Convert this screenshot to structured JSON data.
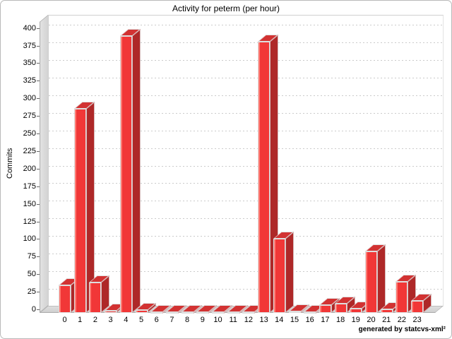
{
  "title": "Activity for peterm (per hour)",
  "footer": {
    "credit": "generated by statcvs-xml²"
  },
  "chart_data": {
    "type": "bar",
    "style": "3d",
    "title": "Activity for peterm (per hour)",
    "xlabel": "",
    "ylabel": "Commits",
    "categories": [
      "0",
      "1",
      "2",
      "3",
      "4",
      "5",
      "6",
      "7",
      "8",
      "9",
      "10",
      "11",
      "12",
      "13",
      "14",
      "15",
      "16",
      "17",
      "18",
      "19",
      "20",
      "21",
      "22",
      "23"
    ],
    "values": [
      39,
      290,
      43,
      3,
      394,
      4,
      1,
      1,
      1,
      1,
      1,
      1,
      1,
      386,
      105,
      2,
      1,
      11,
      13,
      6,
      87,
      5,
      44,
      17
    ],
    "ylim": [
      0,
      400
    ],
    "y_tick_step": 25,
    "y_ticks": [
      0,
      25,
      50,
      75,
      100,
      125,
      150,
      175,
      200,
      225,
      250,
      275,
      300,
      325,
      350,
      375,
      400
    ],
    "grid": true,
    "legend": "none",
    "bar_color": "#f13737",
    "bar_top_color": "#d23232",
    "bar_side_color": "#ae2828",
    "wall_color": "#d8d8d8",
    "grid_color": "#cbcbcb"
  }
}
